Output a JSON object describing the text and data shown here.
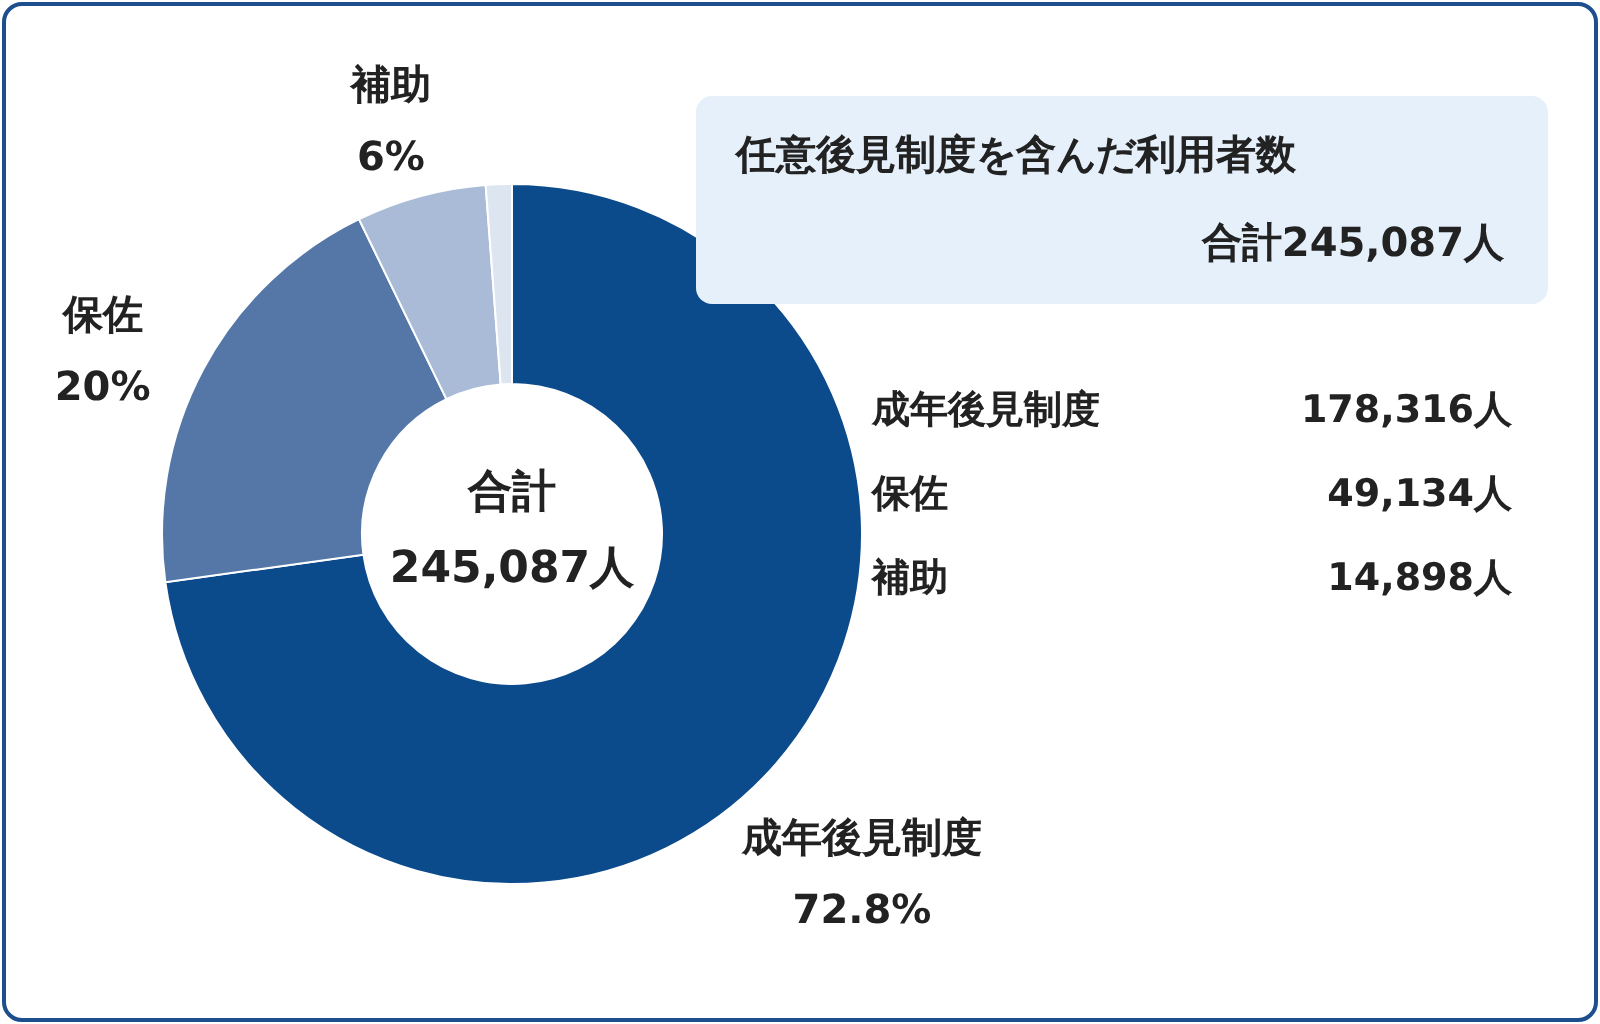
{
  "chart_data": {
    "type": "donut",
    "categories": [
      "成年後見制度",
      "保佐",
      "補助",
      null
    ],
    "values": [
      72.8,
      20,
      6,
      1.2
    ],
    "value_labels": [
      "72.8%",
      "20%",
      "6%",
      null
    ],
    "colors": [
      "#0b4a8b",
      "#5577a8",
      "#a9bbd6",
      "#dde5f0"
    ],
    "legend": false,
    "annotations": [
      "合計\n245,087人",
      "任意後見制度を含んだ利用者数",
      "合計245,087人",
      "成年後見制度 178,316人",
      "保佐 49,134人",
      "補助 14,898人"
    ]
  }
}
